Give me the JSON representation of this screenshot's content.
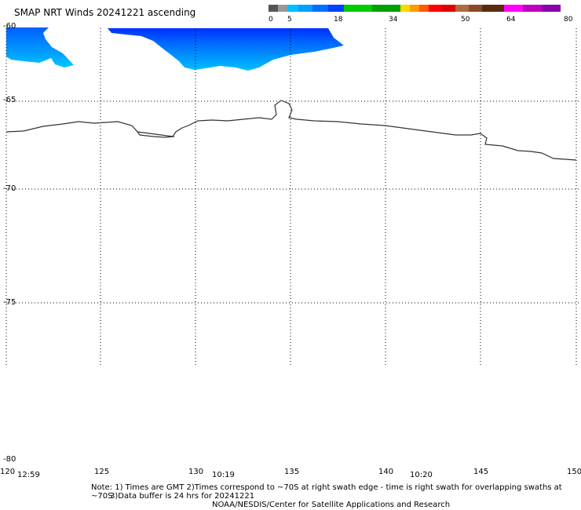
{
  "title": "SMAP NRT Winds 20241221 ascending",
  "colorbar": {
    "labels": [
      "0",
      "5",
      "18",
      "34",
      "50",
      "64",
      "80"
    ],
    "segments": [
      {
        "color": "#555555"
      },
      {
        "color": "#999999"
      },
      {
        "color": "#00bfff"
      },
      {
        "color": "#00a0ff"
      },
      {
        "color": "#0070ff"
      },
      {
        "color": "#0040ff"
      },
      {
        "color": "#00cc00"
      },
      {
        "color": "#00a000"
      },
      {
        "color": "#ffd700"
      },
      {
        "color": "#ff9900"
      },
      {
        "color": "#ff5a00"
      },
      {
        "color": "#ff0000"
      },
      {
        "color": "#e00000"
      },
      {
        "color": "#b06a40"
      },
      {
        "color": "#8a4a2a"
      },
      {
        "color": "#5a2a10"
      },
      {
        "color": "#ff00ff"
      },
      {
        "color": "#c000c0"
      },
      {
        "color": "#8800aa"
      }
    ]
  },
  "map": {
    "lat_labels": [
      "-60",
      "-65",
      "-70",
      "-75",
      "-80"
    ],
    "lon_labels": [
      "120",
      "125",
      "130",
      "135",
      "140",
      "145",
      "150"
    ],
    "time_labels": [
      "12:59",
      "10:19",
      "10:20"
    ]
  },
  "notes": {
    "line1": "Note: 1) Times are GMT 2)Times correspond to ~70S at right swath edge - time is right swath for overlapping swaths at ~70S",
    "line2": "3)Data buffer is 24 hrs for 20241221",
    "line3": "NOAA/NESDIS/Center for Satellite Applications and Research"
  },
  "colors": {
    "wind_light": "#00c8ff",
    "wind_mid": "#0090ff",
    "wind_dark": "#0040ff",
    "coast": "#333333",
    "grid": "#000000"
  }
}
